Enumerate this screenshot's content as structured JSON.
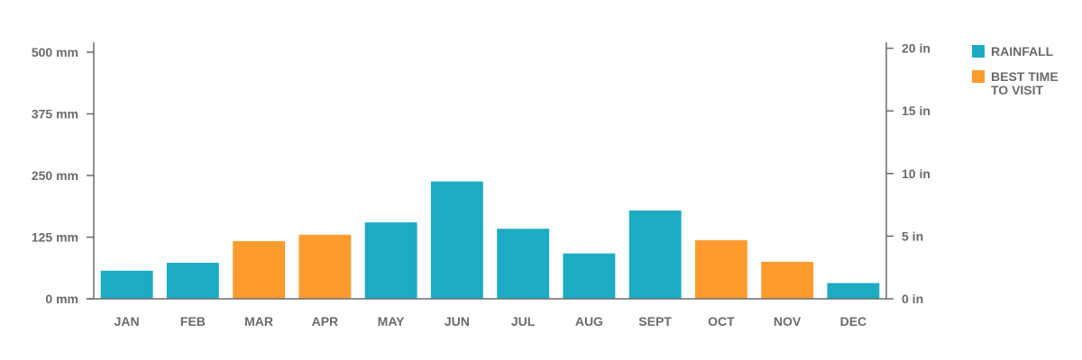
{
  "chart_data": {
    "type": "bar",
    "categories": [
      "JAN",
      "FEB",
      "MAR",
      "APR",
      "MAY",
      "JUN",
      "JUL",
      "AUG",
      "SEPT",
      "OCT",
      "NOV",
      "DEC"
    ],
    "values": [
      57,
      73,
      117,
      130,
      155,
      238,
      142,
      92,
      179,
      119,
      75,
      32
    ],
    "highlight": [
      false,
      false,
      true,
      true,
      false,
      false,
      false,
      false,
      false,
      true,
      true,
      false
    ],
    "ylim": [
      0,
      500
    ],
    "left_axis": {
      "ticks": [
        0,
        125,
        250,
        375,
        500
      ],
      "labels": [
        "0 mm",
        "125 mm",
        "250 mm",
        "375 mm",
        "500 mm"
      ]
    },
    "right_axis": {
      "ticks_mm": [
        0,
        127,
        254,
        381,
        508
      ],
      "labels": [
        "0 in",
        "5 in",
        "10 in",
        "15 in",
        "20 in"
      ]
    },
    "legend": {
      "placement": "top-right",
      "entries": [
        {
          "label_lines": [
            "RAINFALL"
          ],
          "color": "#1DABC4"
        },
        {
          "label_lines": [
            "BEST TIME",
            "TO VISIT"
          ],
          "color": "#FF9B2F"
        }
      ]
    },
    "colors": {
      "default": "#1DABC4",
      "highlight": "#FF9B2F",
      "axis": "#6b6b6b"
    },
    "grid": false
  }
}
